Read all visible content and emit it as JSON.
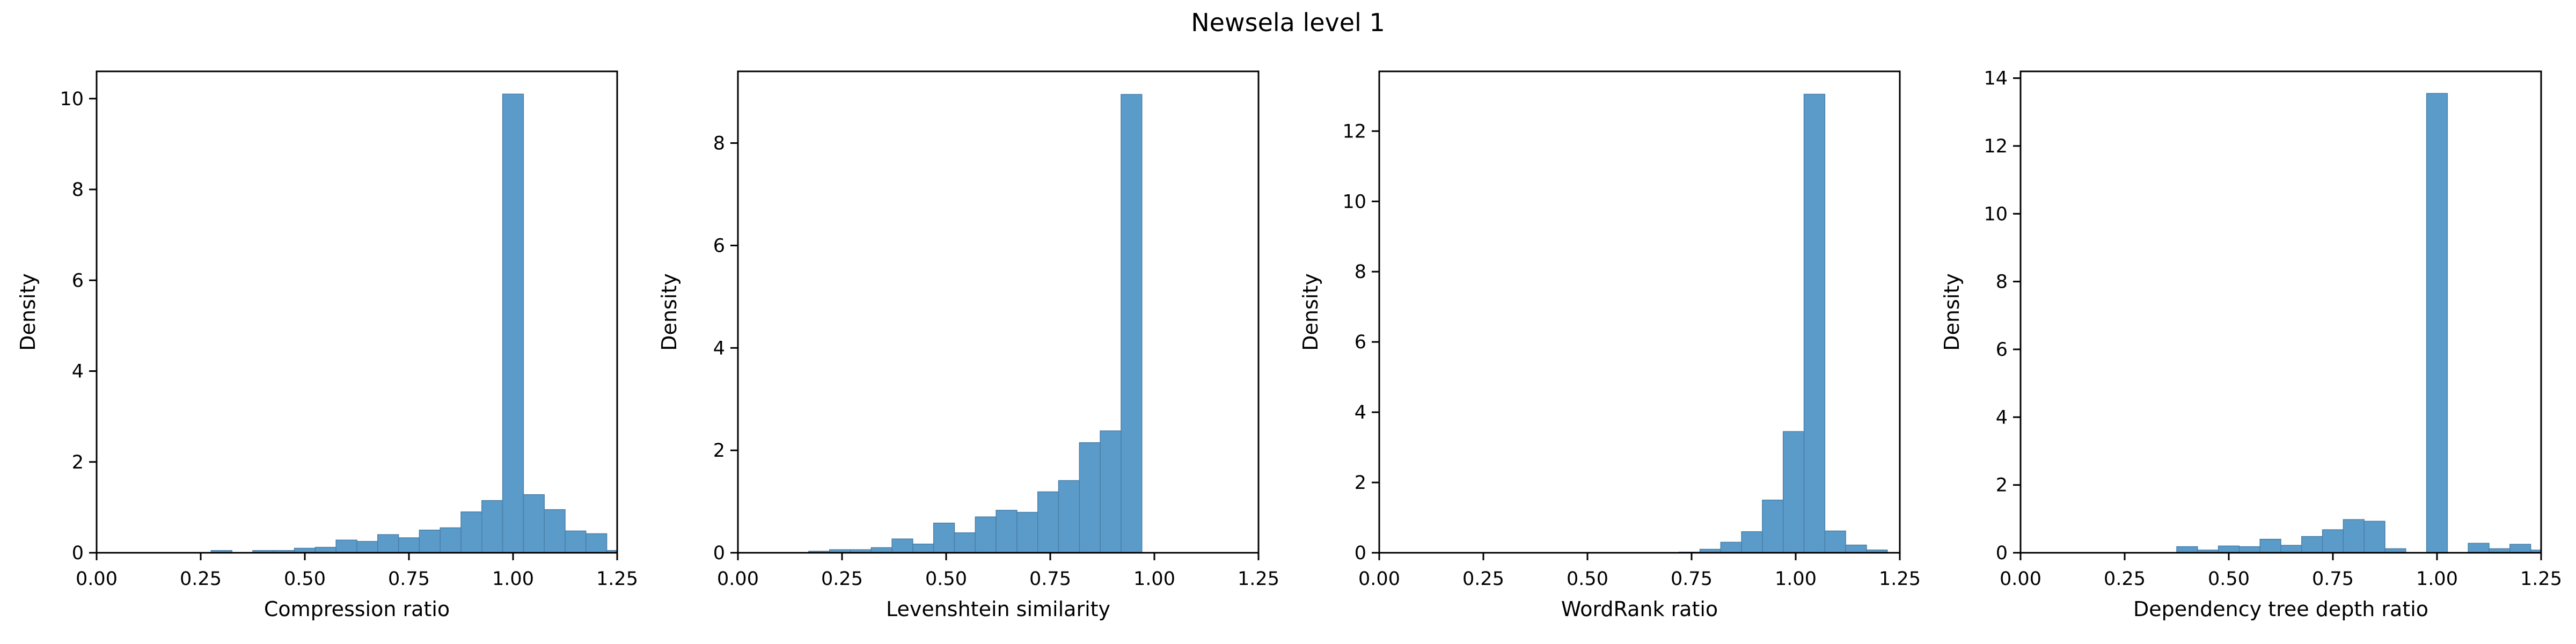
{
  "figure": {
    "suptitle": "Newsela level 1"
  },
  "style": {
    "bar_fill": "#5b9bc9",
    "bar_edge": "#4a7fa8",
    "axis_color": "#000000"
  },
  "chart_data": [
    {
      "type": "bar",
      "xlabel": "Compression ratio",
      "ylabel": "Density",
      "xlim": [
        0,
        1.25
      ],
      "ylim": [
        0,
        10.6
      ],
      "xticks": [
        "0.00",
        "0.25",
        "0.50",
        "0.75",
        "1.00",
        "1.25"
      ],
      "yticks": [
        "0",
        "2",
        "4",
        "6",
        "8",
        "10"
      ],
      "bin_start": 0.025,
      "bin_width": 0.05,
      "values": [
        0,
        0,
        0,
        0,
        0,
        0.05,
        0,
        0.05,
        0.05,
        0.1,
        0.12,
        0.28,
        0.25,
        0.4,
        0.33,
        0.5,
        0.55,
        0.9,
        1.15,
        10.1,
        1.28,
        0.95,
        0.48,
        0.42,
        0.05
      ]
    },
    {
      "type": "bar",
      "xlabel": "Levenshtein similarity",
      "ylabel": "Density",
      "xlim": [
        0,
        1.25
      ],
      "ylim": [
        0,
        9.4
      ],
      "xticks": [
        "0.00",
        "0.25",
        "0.50",
        "0.75",
        "1.00",
        "1.25"
      ],
      "yticks": [
        "0",
        "2",
        "4",
        "6",
        "8"
      ],
      "bin_start": 0.02,
      "bin_width": 0.05,
      "values": [
        0,
        0,
        0,
        0.03,
        0.06,
        0.06,
        0.1,
        0.27,
        0.17,
        0.58,
        0.39,
        0.7,
        0.83,
        0.79,
        1.19,
        1.41,
        2.15,
        2.38,
        8.95
      ]
    },
    {
      "type": "bar",
      "xlabel": "WordRank ratio",
      "ylabel": "Density",
      "xlim": [
        0,
        1.25
      ],
      "ylim": [
        0,
        13.7
      ],
      "xticks": [
        "0.00",
        "0.25",
        "0.50",
        "0.75",
        "1.00",
        "1.25"
      ],
      "yticks": [
        "0",
        "2",
        "4",
        "6",
        "8",
        "10",
        "12"
      ],
      "bin_start": 0.02,
      "bin_width": 0.05,
      "values": [
        0,
        0,
        0,
        0,
        0,
        0,
        0,
        0,
        0,
        0,
        0,
        0,
        0,
        0,
        0.02,
        0.1,
        0.3,
        0.6,
        1.5,
        3.45,
        13.05,
        0.62,
        0.22,
        0.08
      ]
    },
    {
      "type": "bar",
      "xlabel": "Dependency tree depth ratio",
      "ylabel": "Density",
      "xlim": [
        0,
        1.25
      ],
      "ylim": [
        0,
        14.2
      ],
      "xticks": [
        "0.00",
        "0.25",
        "0.50",
        "0.75",
        "1.00",
        "1.25"
      ],
      "yticks": [
        "0",
        "2",
        "4",
        "6",
        "8",
        "10",
        "12",
        "14"
      ],
      "bin_start": 0.025,
      "bin_width": 0.05,
      "values": [
        0,
        0,
        0,
        0,
        0,
        0,
        0,
        0.18,
        0.08,
        0.2,
        0.18,
        0.4,
        0.22,
        0.48,
        0.68,
        0.98,
        0.93,
        0.12,
        0,
        13.55,
        0,
        0.28,
        0.12,
        0.25,
        0.08
      ]
    }
  ]
}
